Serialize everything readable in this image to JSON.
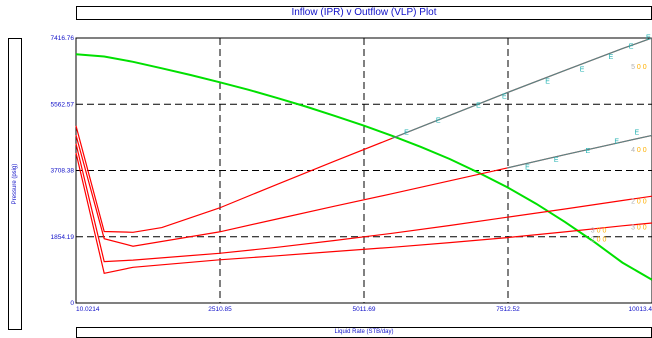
{
  "chart_data": {
    "type": "line",
    "title": "Inflow (IPR) v Outflow (VLP) Plot",
    "xlabel": "Liquid Rate  (STB/day)",
    "ylabel": "Pressure  (psig)",
    "xlim": [
      10.0214,
      10013.4
    ],
    "ylim": [
      0,
      7416.76
    ],
    "x_ticks": [
      "10.0214",
      "2510.85",
      "5011.69",
      "7512.52",
      "10013.4"
    ],
    "y_ticks": [
      "0",
      "1854.19",
      "3708.38",
      "5562.57",
      "7416.76"
    ],
    "grid": "dashed",
    "colors": {
      "ipr": "#00e000",
      "vlp": "#ff0000",
      "e_marker": "#20b0b0",
      "marker_gray": "#b0b0b0",
      "marker_orange": "#ffb000",
      "axis_text": "#1010c8"
    },
    "series": [
      {
        "role": "ipr",
        "x": [
          10,
          500,
          1000,
          1500,
          2000,
          2500,
          3000,
          3500,
          4000,
          4500,
          5000,
          5500,
          6000,
          6500,
          7000,
          7500,
          8000,
          8500,
          9000,
          9500,
          10013.4
        ],
        "y": [
          6960,
          6900,
          6750,
          6570,
          6380,
          6180,
          5970,
          5740,
          5500,
          5240,
          4970,
          4680,
          4370,
          4030,
          3650,
          3240,
          2780,
          2270,
          1720,
          1130,
          650
        ]
      },
      {
        "role": "vlp",
        "x": [
          10,
          500,
          1000,
          1500,
          2500,
          3500,
          4500,
          5500,
          6500,
          7500,
          8500,
          9500,
          10013.4
        ],
        "y": [
          4960,
          2000,
          1980,
          2110,
          2660,
          3320,
          3970,
          4610,
          5250,
          5890,
          6510,
          7120,
          7416.76
        ]
      },
      {
        "role": "vlp",
        "x": [
          10,
          500,
          1000,
          2500,
          3500,
          4500,
          5500,
          6500,
          7500,
          8500,
          9500,
          10013.4
        ],
        "y": [
          4700,
          1800,
          1590,
          1990,
          2350,
          2710,
          3060,
          3420,
          3780,
          4150,
          4510,
          4690
        ]
      },
      {
        "role": "vlp",
        "x": [
          10,
          500,
          1000,
          2500,
          3500,
          4500,
          5500,
          6500,
          7500,
          8500,
          9500,
          10013.4
        ],
        "y": [
          4460,
          1160,
          1200,
          1390,
          1560,
          1750,
          1950,
          2170,
          2400,
          2630,
          2870,
          2990
        ]
      },
      {
        "role": "vlp",
        "x": [
          10,
          500,
          1000,
          2500,
          3500,
          4500,
          5500,
          6500,
          7500,
          8500,
          9500,
          10013.4
        ],
        "y": [
          4200,
          830,
          1000,
          1210,
          1320,
          1440,
          1560,
          1690,
          1830,
          1990,
          2160,
          2240
        ]
      }
    ],
    "e_markers": [
      {
        "x": 5750,
        "y": 4720
      },
      {
        "x": 6300,
        "y": 5050
      },
      {
        "x": 7000,
        "y": 5470
      },
      {
        "x": 7450,
        "y": 5720
      },
      {
        "x": 8200,
        "y": 6140
      },
      {
        "x": 8800,
        "y": 6480
      },
      {
        "x": 9300,
        "y": 6830
      },
      {
        "x": 9650,
        "y": 7120
      },
      {
        "x": 9950,
        "y": 7380
      },
      {
        "x": 7850,
        "y": 3730
      },
      {
        "x": 8350,
        "y": 3950
      },
      {
        "x": 8900,
        "y": 4200
      },
      {
        "x": 9400,
        "y": 4460
      },
      {
        "x": 9750,
        "y": 4720
      }
    ],
    "number_markers": [
      {
        "x": 9650,
        "y": 6550,
        "text": "5 0 0"
      },
      {
        "x": 9650,
        "y": 4220,
        "text": "4 0 0"
      },
      {
        "x": 9650,
        "y": 2790,
        "text": "2 0 0"
      },
      {
        "x": 9650,
        "y": 2060,
        "text": "3 0 0"
      },
      {
        "x": 8950,
        "y": 1980,
        "text": "3 0 0"
      },
      {
        "x": 8950,
        "y": 1720,
        "text": "2 0 0"
      }
    ]
  }
}
